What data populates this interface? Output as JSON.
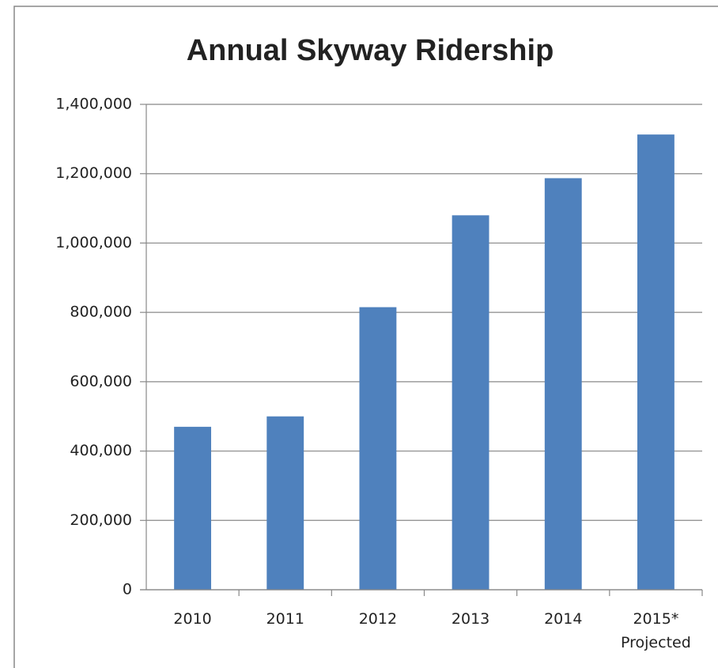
{
  "chart_data": {
    "type": "bar",
    "title": "Annual Skyway Ridership",
    "categories": [
      "2010",
      "2011",
      "2012",
      "2013",
      "2014",
      "2015*\nProjected"
    ],
    "values": [
      470000,
      500000,
      815000,
      1080000,
      1187000,
      1313000
    ],
    "color": "#4f81bd",
    "ylim": [
      0,
      1400000
    ],
    "yticks": [
      0,
      {
        "value": 200000,
        "label": "200,000"
      },
      {
        "value": 400000,
        "label": "400,000"
      },
      {
        "value": 600000,
        "label": "600,000"
      },
      {
        "value": 800000,
        "label": "800,000"
      },
      {
        "value": 1000000,
        "label": "1,000,000"
      },
      {
        "value": 1200000,
        "label": "1,200,000"
      },
      {
        "value": 1400000,
        "label": "1,400,000"
      }
    ],
    "grid": true
  }
}
